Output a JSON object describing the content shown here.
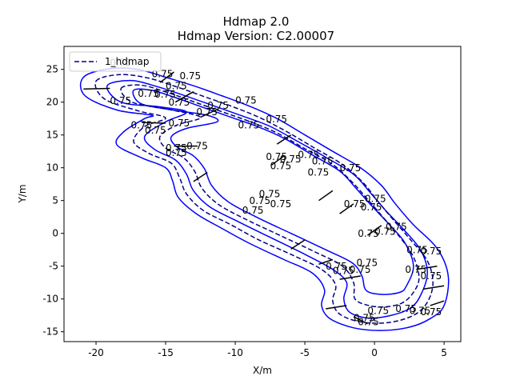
{
  "chart_data": {
    "type": "line",
    "title": "Hdmap 2.0",
    "subtitle": "Hdmap Version:  C2.00007",
    "xlabel": "X/m",
    "ylabel": "Y/m",
    "xlim": [
      -22.3,
      6.2
    ],
    "ylim": [
      -16.5,
      28.5
    ],
    "xticks": [
      -20,
      -15,
      -10,
      -5,
      0,
      5
    ],
    "yticks": [
      -15,
      -10,
      -5,
      0,
      5,
      10,
      15,
      20,
      25
    ],
    "grid": false,
    "legend": {
      "placement": "top-left",
      "entries": [
        "1_hdmap"
      ]
    },
    "colors": {
      "boundary": "#0000ff",
      "centerline": "#00008b",
      "stopline": "#000000",
      "axes": "#000000"
    },
    "loops": [
      {
        "name": "outer-boundary",
        "style": "solid",
        "points": [
          [
            -20.9,
            23.8
          ],
          [
            -19.0,
            25.1
          ],
          [
            -17.0,
            25.0
          ],
          [
            -15.0,
            23.8
          ],
          [
            -13.0,
            22.5
          ],
          [
            -11.0,
            21.0
          ],
          [
            -9.0,
            19.4
          ],
          [
            -7.0,
            17.5
          ],
          [
            -5.0,
            15.0
          ],
          [
            -3.0,
            12.5
          ],
          [
            -1.0,
            10.0
          ],
          [
            0.5,
            7.3
          ],
          [
            1.5,
            4.5
          ],
          [
            2.8,
            1.3
          ],
          [
            4.5,
            -2.3
          ],
          [
            5.3,
            -6.5
          ],
          [
            5.0,
            -11.0
          ],
          [
            4.0,
            -13.0
          ],
          [
            2.5,
            -14.3
          ],
          [
            0.5,
            -14.8
          ],
          [
            -1.5,
            -14.4
          ],
          [
            -3.2,
            -13.0
          ],
          [
            -3.8,
            -11.0
          ],
          [
            -3.6,
            -8.5
          ],
          [
            -4.5,
            -6.0
          ],
          [
            -6.5,
            -4.0
          ],
          [
            -9.0,
            -1.5
          ],
          [
            -11.0,
            0.8
          ],
          [
            -12.8,
            3.0
          ],
          [
            -14.1,
            5.5
          ],
          [
            -14.5,
            8.0
          ],
          [
            -15.0,
            10.0
          ],
          [
            -16.7,
            11.5
          ],
          [
            -18.5,
            13.5
          ],
          [
            -18.0,
            15.5
          ],
          [
            -16.5,
            17.5
          ],
          [
            -16.0,
            18.0
          ],
          [
            -18.5,
            18.8
          ],
          [
            -20.8,
            21.0
          ],
          [
            -20.9,
            23.8
          ]
        ]
      },
      {
        "name": "lane-divider",
        "style": "solid",
        "points": [
          [
            -19.2,
            22.5
          ],
          [
            -17.5,
            23.3
          ],
          [
            -15.5,
            22.3
          ],
          [
            -13.5,
            20.9
          ],
          [
            -11.5,
            19.4
          ],
          [
            -9.5,
            17.9
          ],
          [
            -7.5,
            16.3
          ],
          [
            -5.5,
            14.0
          ],
          [
            -3.5,
            11.6
          ],
          [
            -1.5,
            9.0
          ],
          [
            -0.3,
            6.2
          ],
          [
            0.8,
            3.5
          ],
          [
            2.0,
            0.8
          ],
          [
            3.3,
            -2.5
          ],
          [
            3.8,
            -6.0
          ],
          [
            3.3,
            -9.5
          ],
          [
            2.5,
            -11.5
          ],
          [
            1.0,
            -12.6
          ],
          [
            -0.5,
            -12.9
          ],
          [
            -1.8,
            -12.0
          ],
          [
            -2.2,
            -10.0
          ],
          [
            -2.0,
            -7.5
          ],
          [
            -3.0,
            -5.5
          ],
          [
            -5.0,
            -3.2
          ],
          [
            -7.5,
            -0.6
          ],
          [
            -9.8,
            1.8
          ],
          [
            -11.8,
            4.0
          ],
          [
            -13.0,
            6.5
          ],
          [
            -13.5,
            9.0
          ],
          [
            -14.3,
            11.2
          ],
          [
            -15.8,
            12.8
          ],
          [
            -16.5,
            14.8
          ],
          [
            -15.0,
            17.0
          ],
          [
            -13.5,
            18.5
          ],
          [
            -15.5,
            19.3
          ],
          [
            -18.2,
            20.0
          ],
          [
            -19.2,
            22.5
          ]
        ]
      },
      {
        "name": "inner-boundary",
        "style": "solid",
        "points": [
          [
            -17.3,
            21.8
          ],
          [
            -16.0,
            21.8
          ],
          [
            -14.3,
            20.7
          ],
          [
            -12.3,
            19.2
          ],
          [
            -10.3,
            17.7
          ],
          [
            -8.3,
            16.2
          ],
          [
            -6.5,
            14.5
          ],
          [
            -4.5,
            12.0
          ],
          [
            -2.5,
            9.5
          ],
          [
            -1.3,
            6.8
          ],
          [
            -0.2,
            4.2
          ],
          [
            1.0,
            1.5
          ],
          [
            2.2,
            -1.5
          ],
          [
            2.8,
            -5.0
          ],
          [
            2.3,
            -8.0
          ],
          [
            1.8,
            -9.0
          ],
          [
            0.5,
            -9.3
          ],
          [
            -0.6,
            -8.7
          ],
          [
            -0.9,
            -6.5
          ],
          [
            -1.6,
            -4.5
          ],
          [
            -3.5,
            -2.5
          ],
          [
            -6.0,
            0.0
          ],
          [
            -8.5,
            2.5
          ],
          [
            -10.5,
            4.8
          ],
          [
            -11.7,
            7.3
          ],
          [
            -12.2,
            9.8
          ],
          [
            -13.0,
            11.8
          ],
          [
            -14.2,
            13.2
          ],
          [
            -14.6,
            14.7
          ],
          [
            -13.5,
            16.0
          ],
          [
            -11.3,
            17.0
          ],
          [
            -12.0,
            18.0
          ],
          [
            -14.5,
            18.8
          ],
          [
            -16.8,
            19.8
          ],
          [
            -17.3,
            21.8
          ]
        ]
      },
      {
        "name": "lane-centerline-outer",
        "style": "dashed",
        "points": [
          [
            -20.0,
            23.2
          ],
          [
            -18.3,
            24.2
          ],
          [
            -16.3,
            23.7
          ],
          [
            -14.3,
            22.4
          ],
          [
            -12.3,
            20.9
          ],
          [
            -10.3,
            19.4
          ],
          [
            -8.3,
            17.7
          ],
          [
            -6.3,
            15.5
          ],
          [
            -4.3,
            13.0
          ],
          [
            -2.3,
            10.5
          ],
          [
            -0.8,
            7.7
          ],
          [
            0.2,
            5.0
          ],
          [
            1.3,
            2.2
          ],
          [
            2.6,
            -1.0
          ],
          [
            3.8,
            -4.2
          ],
          [
            4.2,
            -7.5
          ],
          [
            3.8,
            -10.5
          ],
          [
            2.8,
            -12.5
          ],
          [
            1.0,
            -13.6
          ],
          [
            -1.0,
            -13.5
          ],
          [
            -2.5,
            -12.3
          ],
          [
            -3.0,
            -10.3
          ],
          [
            -2.8,
            -7.8
          ],
          [
            -3.8,
            -5.5
          ],
          [
            -5.8,
            -3.4
          ],
          [
            -8.3,
            -1.0
          ],
          [
            -10.3,
            1.3
          ],
          [
            -12.3,
            3.5
          ],
          [
            -13.5,
            6.0
          ],
          [
            -14.0,
            8.5
          ],
          [
            -14.6,
            10.7
          ],
          [
            -16.2,
            12.2
          ],
          [
            -17.3,
            14.0
          ],
          [
            -16.5,
            16.3
          ],
          [
            -15.0,
            17.6
          ],
          [
            -17.0,
            18.7
          ],
          [
            -19.4,
            20.5
          ],
          [
            -20.0,
            23.2
          ]
        ]
      },
      {
        "name": "lane-centerline-inner",
        "style": "dashed",
        "points": [
          [
            -18.2,
            22.1
          ],
          [
            -16.8,
            22.6
          ],
          [
            -14.9,
            21.5
          ],
          [
            -12.9,
            20.0
          ],
          [
            -10.9,
            18.5
          ],
          [
            -8.9,
            17.0
          ],
          [
            -7.0,
            15.3
          ],
          [
            -5.0,
            12.9
          ],
          [
            -3.0,
            10.5
          ],
          [
            -1.6,
            7.8
          ],
          [
            -0.5,
            5.2
          ],
          [
            0.6,
            2.5
          ],
          [
            1.8,
            -0.5
          ],
          [
            2.8,
            -3.6
          ],
          [
            3.2,
            -6.8
          ],
          [
            2.8,
            -9.0
          ],
          [
            2.0,
            -10.6
          ],
          [
            0.8,
            -11.2
          ],
          [
            -0.4,
            -11.0
          ],
          [
            -1.4,
            -10.0
          ],
          [
            -1.5,
            -7.5
          ],
          [
            -2.3,
            -5.0
          ],
          [
            -4.2,
            -2.9
          ],
          [
            -6.8,
            -0.3
          ],
          [
            -9.2,
            2.1
          ],
          [
            -11.2,
            4.4
          ],
          [
            -12.4,
            6.9
          ],
          [
            -12.9,
            9.4
          ],
          [
            -13.7,
            11.5
          ],
          [
            -15.0,
            13.0
          ],
          [
            -15.4,
            14.8
          ],
          [
            -14.2,
            16.5
          ],
          [
            -12.5,
            17.7
          ],
          [
            -14.8,
            18.9
          ],
          [
            -17.4,
            20.0
          ],
          [
            -18.2,
            22.1
          ]
        ]
      }
    ],
    "stop_lines": [
      [
        [
          -20.9,
          22.0
        ],
        [
          -19.0,
          22.1
        ]
      ],
      [
        [
          -16.7,
          16.9
        ],
        [
          -15.0,
          16.8
        ]
      ],
      [
        [
          -14.4,
          13.3
        ],
        [
          -12.7,
          13.3
        ]
      ],
      [
        [
          -15.4,
          23.0
        ],
        [
          -14.4,
          24.6
        ]
      ],
      [
        [
          -14.3,
          20.0
        ],
        [
          -13.0,
          21.6
        ]
      ],
      [
        [
          -12.5,
          17.7
        ],
        [
          -11.2,
          19.0
        ]
      ],
      [
        [
          -13.0,
          7.9
        ],
        [
          -12.0,
          9.3
        ]
      ],
      [
        [
          -7.0,
          13.6
        ],
        [
          -6.0,
          15.0
        ]
      ],
      [
        [
          -7.4,
          10.4
        ],
        [
          -6.5,
          11.8
        ]
      ],
      [
        [
          -4.0,
          5.0
        ],
        [
          -3.0,
          6.5
        ]
      ],
      [
        [
          -6.0,
          -2.4
        ],
        [
          -5.0,
          -1.0
        ]
      ],
      [
        [
          -2.5,
          3.0
        ],
        [
          -1.5,
          4.5
        ]
      ],
      [
        [
          -0.5,
          -0.3
        ],
        [
          0.5,
          1.2
        ]
      ],
      [
        [
          -4.0,
          -4.7
        ],
        [
          -3.0,
          -4.0
        ]
      ],
      [
        [
          -2.5,
          -7.0
        ],
        [
          -1.0,
          -6.5
        ]
      ],
      [
        [
          3.0,
          -5.5
        ],
        [
          4.5,
          -5.0
        ]
      ],
      [
        [
          3.5,
          -8.5
        ],
        [
          5.0,
          -8.0
        ]
      ],
      [
        [
          -3.5,
          -11.5
        ],
        [
          -2.0,
          -11.0
        ]
      ],
      [
        [
          -1.5,
          -12.7
        ],
        [
          -0.5,
          -13.8
        ]
      ],
      [
        [
          4.0,
          -11.0
        ],
        [
          5.0,
          -10.3
        ]
      ]
    ],
    "annotations": [
      {
        "text": "0.75",
        "x": -19.0,
        "y": 25.5
      },
      {
        "text": "0.75",
        "x": -16.0,
        "y": 23.8
      },
      {
        "text": "0.75",
        "x": -14.0,
        "y": 23.5
      },
      {
        "text": "0.75",
        "x": -15.0,
        "y": 22.0
      },
      {
        "text": "0.75",
        "x": -17.0,
        "y": 20.8
      },
      {
        "text": "0.75",
        "x": -19.0,
        "y": 19.7
      },
      {
        "text": "0.75",
        "x": -15.8,
        "y": 20.7
      },
      {
        "text": "0.75",
        "x": -14.8,
        "y": 19.5
      },
      {
        "text": "0.75",
        "x": -12.8,
        "y": 18.0
      },
      {
        "text": "0.75",
        "x": -12.0,
        "y": 19.0
      },
      {
        "text": "0.75",
        "x": -10.0,
        "y": 19.8
      },
      {
        "text": "0.75",
        "x": -7.8,
        "y": 16.9
      },
      {
        "text": "0.75",
        "x": -9.8,
        "y": 16.0
      },
      {
        "text": "0.75",
        "x": -17.5,
        "y": 16.0
      },
      {
        "text": "0.75",
        "x": -14.8,
        "y": 16.3
      },
      {
        "text": "0.75",
        "x": -16.5,
        "y": 15.2
      },
      {
        "text": "0.75",
        "x": -15.0,
        "y": 12.5
      },
      {
        "text": "0.75",
        "x": -13.5,
        "y": 12.8
      },
      {
        "text": "0.75",
        "x": -15.0,
        "y": 11.8
      },
      {
        "text": "0.75",
        "x": -7.8,
        "y": 11.2
      },
      {
        "text": "0.75",
        "x": -5.5,
        "y": 11.5
      },
      {
        "text": "0.75",
        "x": -6.8,
        "y": 10.8
      },
      {
        "text": "0.75",
        "x": -4.5,
        "y": 10.5
      },
      {
        "text": "0.75",
        "x": -7.5,
        "y": 9.8
      },
      {
        "text": "0.75",
        "x": -4.8,
        "y": 8.8
      },
      {
        "text": "0.75",
        "x": -2.5,
        "y": 9.5
      },
      {
        "text": "0.75",
        "x": -8.3,
        "y": 5.5
      },
      {
        "text": "0.75",
        "x": -9.0,
        "y": 4.5
      },
      {
        "text": "0.75",
        "x": -7.5,
        "y": 4.0
      },
      {
        "text": "0.75",
        "x": -9.5,
        "y": 3.0
      },
      {
        "text": "0.75",
        "x": -2.2,
        "y": 4.0
      },
      {
        "text": "0.75",
        "x": -0.7,
        "y": 4.8
      },
      {
        "text": "0.75",
        "x": -1.0,
        "y": 3.5
      },
      {
        "text": "0.75",
        "x": 0.8,
        "y": 0.5
      },
      {
        "text": "0.75",
        "x": -1.2,
        "y": -0.5
      },
      {
        "text": "0.75",
        "x": 0.0,
        "y": -0.2
      },
      {
        "text": "0.75",
        "x": 2.3,
        "y": -3.0
      },
      {
        "text": "0.75",
        "x": 3.3,
        "y": -3.2
      },
      {
        "text": "0.75",
        "x": -3.5,
        "y": -5.5
      },
      {
        "text": "0.75",
        "x": -1.3,
        "y": -5.0
      },
      {
        "text": "0.75",
        "x": -3.0,
        "y": -6.2
      },
      {
        "text": "0.75",
        "x": -1.8,
        "y": -6.0
      },
      {
        "text": "0.75",
        "x": 2.2,
        "y": -6.0
      },
      {
        "text": "0.75",
        "x": 3.3,
        "y": -7.0
      },
      {
        "text": "0.75",
        "x": 1.5,
        "y": -12.0
      },
      {
        "text": "0.75",
        "x": 2.5,
        "y": -12.3
      },
      {
        "text": "0.75",
        "x": 3.3,
        "y": -12.5
      },
      {
        "text": "0.75",
        "x": -0.5,
        "y": -12.3
      },
      {
        "text": "0.75",
        "x": -1.5,
        "y": -13.4
      },
      {
        "text": "0.75",
        "x": -1.2,
        "y": -14.0
      }
    ]
  }
}
